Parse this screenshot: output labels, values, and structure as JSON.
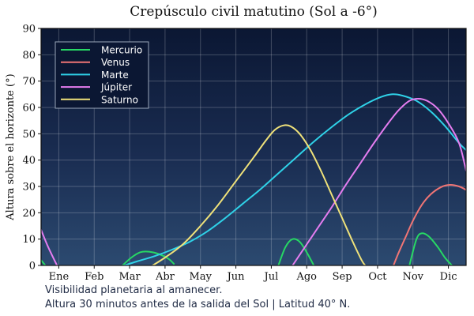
{
  "chart_data": {
    "type": "line",
    "title": "Crepúsculo civil matutino (Sol a -6°)",
    "xlabel": "",
    "ylabel": "Altura sobre el horizonte (°)",
    "x_tick_labels": [
      "Ene",
      "Feb",
      "Mar",
      "Abr",
      "May",
      "Jun",
      "Jul",
      "Ago",
      "Sep",
      "Oct",
      "Nov",
      "Dic"
    ],
    "x_domain": [
      0,
      12
    ],
    "ylim": [
      0,
      90
    ],
    "y_ticks": [
      0,
      10,
      20,
      30,
      40,
      50,
      60,
      70,
      80,
      90
    ],
    "grid": true,
    "legend_position": "top-left",
    "series": [
      {
        "name": "Mercurio",
        "color": "#27d864",
        "segments": [
          [
            [
              0,
              2
            ],
            [
              0.12,
              0
            ]
          ],
          [
            [
              2.3,
              0
            ],
            [
              2.55,
              3
            ],
            [
              2.8,
              5
            ],
            [
              3.05,
              5.2
            ],
            [
              3.35,
              4.2
            ],
            [
              3.6,
              2.5
            ],
            [
              3.75,
              0.6
            ]
          ],
          [
            [
              6.7,
              0
            ],
            [
              6.9,
              7
            ],
            [
              7.1,
              10
            ],
            [
              7.3,
              9
            ],
            [
              7.5,
              5
            ],
            [
              7.7,
              0
            ]
          ],
          [
            [
              10.4,
              0
            ],
            [
              10.6,
              10
            ],
            [
              10.75,
              12.2
            ],
            [
              10.95,
              11
            ],
            [
              11.2,
              7
            ],
            [
              11.4,
              3
            ],
            [
              11.6,
              0
            ]
          ]
        ]
      },
      {
        "name": "Venus",
        "color": "#f07575",
        "segments": [
          [
            [
              9.95,
              0
            ],
            [
              10.1,
              5
            ],
            [
              10.3,
              11
            ],
            [
              10.5,
              17
            ],
            [
              10.75,
              23
            ],
            [
              11,
              27
            ],
            [
              11.3,
              29.8
            ],
            [
              11.55,
              30.6
            ],
            [
              11.8,
              30
            ],
            [
              12,
              28.7
            ]
          ]
        ]
      },
      {
        "name": "Marte",
        "color": "#2fd2e8",
        "segments": [
          [
            [
              2.35,
              0
            ],
            [
              2.7,
              1.5
            ],
            [
              3.2,
              3.5
            ],
            [
              3.7,
              6
            ],
            [
              4.2,
              9
            ],
            [
              4.7,
              13
            ],
            [
              5.2,
              18
            ],
            [
              5.7,
              23.5
            ],
            [
              6.2,
              29
            ],
            [
              6.7,
              35
            ],
            [
              7.2,
              41
            ],
            [
              7.7,
              47
            ],
            [
              8.2,
              52.5
            ],
            [
              8.7,
              57.5
            ],
            [
              9.2,
              61.5
            ],
            [
              9.6,
              64
            ],
            [
              9.9,
              65
            ],
            [
              10.2,
              64.5
            ],
            [
              10.6,
              62.5
            ],
            [
              11,
              58.5
            ],
            [
              11.4,
              53
            ],
            [
              11.8,
              46.5
            ],
            [
              12,
              43.8
            ]
          ]
        ]
      },
      {
        "name": "Júpiter",
        "color": "#e57df0",
        "segments": [
          [
            [
              0,
              13.5
            ],
            [
              0.2,
              7
            ],
            [
              0.45,
              0
            ]
          ],
          [
            [
              7.1,
              0
            ],
            [
              7.4,
              6
            ],
            [
              7.8,
              14
            ],
            [
              8.2,
              22
            ],
            [
              8.6,
              30.5
            ],
            [
              9,
              38.5
            ],
            [
              9.4,
              46.5
            ],
            [
              9.8,
              54
            ],
            [
              10.1,
              59
            ],
            [
              10.4,
              62.5
            ],
            [
              10.65,
              63.3
            ],
            [
              10.9,
              62.5
            ],
            [
              11.2,
              59.5
            ],
            [
              11.5,
              54
            ],
            [
              11.8,
              46.5
            ],
            [
              12,
              36
            ]
          ]
        ]
      },
      {
        "name": "Saturno",
        "color": "#f0e27a",
        "segments": [
          [
            [
              3.15,
              0
            ],
            [
              3.5,
              3
            ],
            [
              4,
              8
            ],
            [
              4.5,
              15
            ],
            [
              5,
              23
            ],
            [
              5.5,
              32
            ],
            [
              6,
              41
            ],
            [
              6.35,
              47.5
            ],
            [
              6.6,
              51.5
            ],
            [
              6.85,
              53.2
            ],
            [
              7.05,
              52.8
            ],
            [
              7.3,
              50
            ],
            [
              7.6,
              44
            ],
            [
              7.9,
              36
            ],
            [
              8.2,
              27
            ],
            [
              8.5,
              18
            ],
            [
              8.8,
              9
            ],
            [
              9.05,
              2
            ],
            [
              9.15,
              0
            ]
          ]
        ]
      }
    ]
  },
  "caption": {
    "line1": "Visibilidad planetaria al amanecer.",
    "line2": "Altura 30 minutos antes de la salida del Sol  |  Latitud 40° N."
  }
}
